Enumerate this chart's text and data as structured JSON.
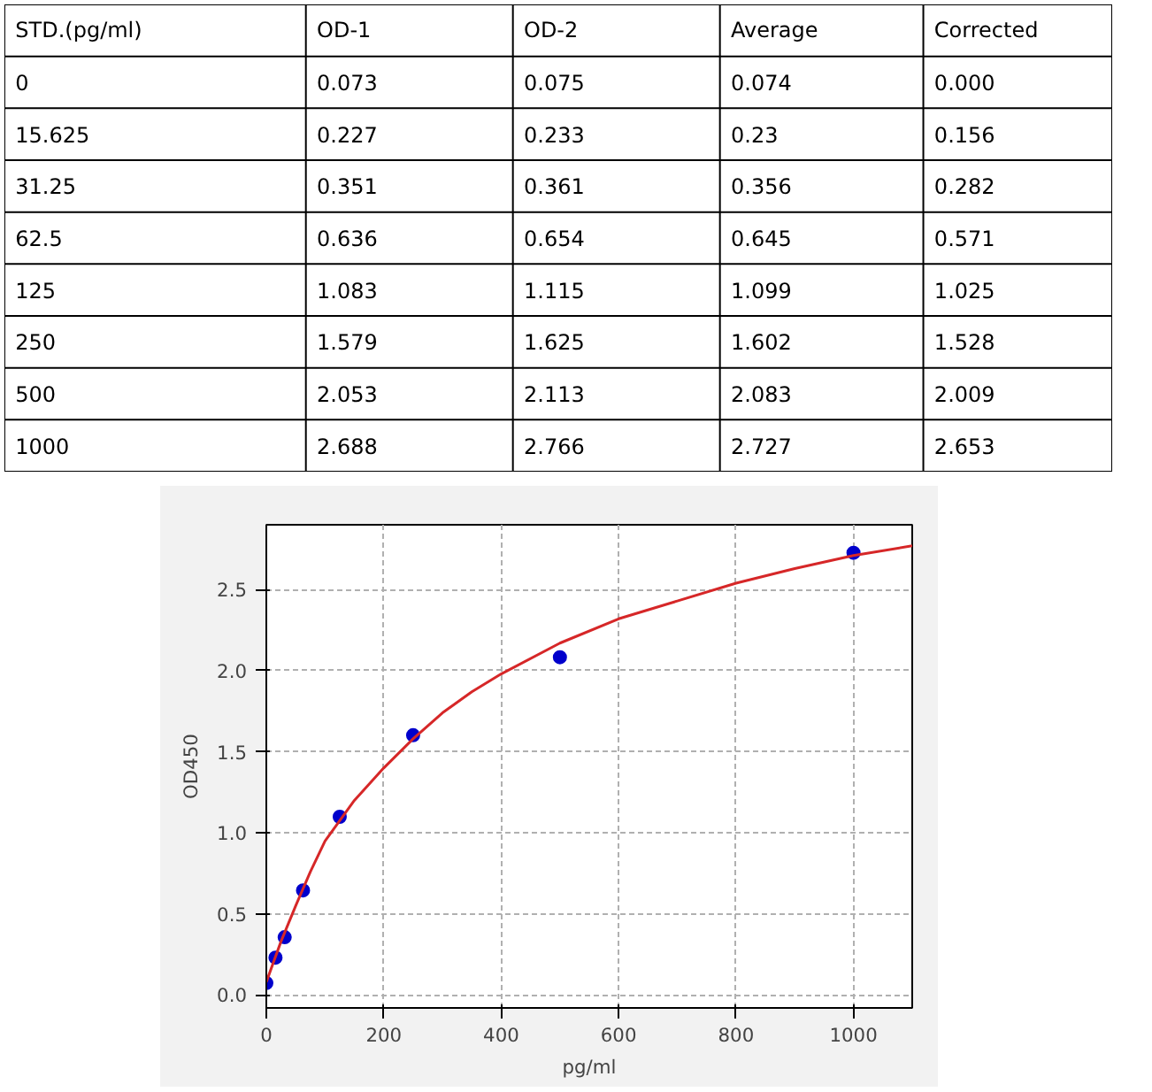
{
  "chart_data": {
    "type": "scatter",
    "xlabel": "pg/ml",
    "ylabel": "OD450",
    "x": [
      0,
      15.625,
      31.25,
      62.5,
      125,
      250,
      500,
      1000
    ],
    "series": [
      {
        "marker": "circle",
        "color": "#0000cc",
        "values": [
          0.074,
          0.23,
          0.356,
          0.645,
          1.099,
          1.602,
          2.083,
          2.727
        ]
      },
      {
        "type": "line",
        "color": "#d62728",
        "x": [
          0,
          25,
          50,
          75,
          100,
          150,
          200,
          250,
          300,
          350,
          400,
          500,
          600,
          700,
          800,
          900,
          1000,
          1100
        ],
        "values": [
          0.08,
          0.33,
          0.55,
          0.76,
          0.95,
          1.2,
          1.4,
          1.58,
          1.74,
          1.87,
          1.98,
          2.17,
          2.32,
          2.43,
          2.54,
          2.63,
          2.71,
          2.77
        ]
      }
    ],
    "xlim": [
      0,
      1100
    ],
    "xticks": [
      0,
      200,
      400,
      600,
      800,
      1000
    ],
    "ylim": [
      -0.08,
      2.9
    ],
    "yticks": [
      {
        "value": 0,
        "label": "0.0"
      },
      0.5,
      {
        "value": 1,
        "label": "1.0"
      },
      1.5,
      {
        "value": 2,
        "label": "2.0"
      },
      2.5
    ],
    "grid": true,
    "line_style": "solid",
    "annotations": [
      "STD.(pg/ml)",
      "OD-1",
      "OD-2",
      "Average",
      "Corrected",
      "0",
      "0.073",
      "0.075",
      "0.074",
      "0.000",
      "15.625",
      "0.227",
      "0.233",
      "0.23",
      "0.156",
      "31.25",
      "0.351",
      "0.361",
      "0.356",
      "0.282",
      "62.5",
      "0.636",
      "0.654",
      "0.645",
      "0.571",
      "125",
      "1.083",
      "1.115",
      "1.099",
      "1.025",
      "250",
      "1.579",
      "1.625",
      "1.602",
      "1.528",
      "500",
      "2.053",
      "2.113",
      "2.083",
      "2.009",
      "1000",
      "2.688",
      "2.766",
      "2.727",
      "2.653"
    ]
  }
}
